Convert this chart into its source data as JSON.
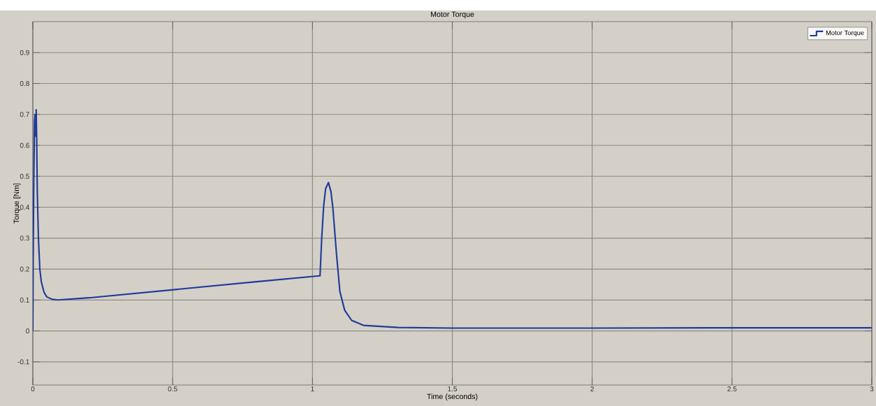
{
  "chart_data": {
    "type": "line",
    "title": "Motor Torque",
    "xlabel": "Time (seconds)",
    "ylabel": "Torque [Nm]",
    "x": [
      0,
      0.001,
      0.003,
      0.006,
      0.008,
      0.01,
      0.012,
      0.014,
      0.016,
      0.02,
      0.025,
      0.03,
      0.04,
      0.05,
      0.07,
      0.09,
      0.2,
      0.5,
      0.8,
      1.024,
      1.027,
      1.033,
      1.04,
      1.047,
      1.057,
      1.066,
      1.073,
      1.086,
      1.098,
      1.115,
      1.14,
      1.182,
      1.306,
      1.5,
      2,
      2.5,
      3
    ],
    "series": [
      {
        "name": "Motor Torque",
        "color": "#1f3a9a",
        "values": [
          0,
          0.2,
          0.45,
          0.68,
          0.7,
          0.63,
          0.715,
          0.6,
          0.45,
          0.3,
          0.2,
          0.16,
          0.125,
          0.11,
          0.102,
          0.1,
          0.107,
          0.133,
          0.159,
          0.178,
          0.178,
          0.3,
          0.405,
          0.46,
          0.48,
          0.45,
          0.397,
          0.247,
          0.127,
          0.067,
          0.034,
          0.018,
          0.011,
          0.009,
          0.009,
          0.01,
          0.01
        ]
      }
    ],
    "xlim": [
      0,
      3
    ],
    "ylim": [
      -0.175,
      1.0
    ],
    "xticks": [
      0,
      0.5,
      1,
      1.5,
      2,
      2.5,
      3
    ],
    "yticks": [
      -0.1,
      0,
      0.1,
      0.2,
      0.3,
      0.4,
      0.5,
      0.6,
      0.7,
      0.8,
      0.9
    ],
    "grid": true,
    "legend": "top right",
    "marker": "none",
    "line_style": "solid"
  }
}
